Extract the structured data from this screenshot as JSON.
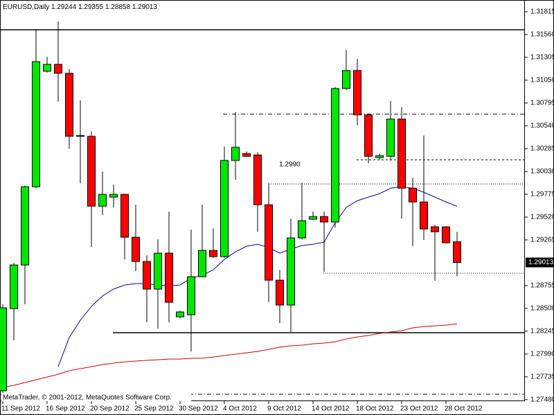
{
  "chart_data": {
    "type": "candlestick",
    "title": "EURUSD,Daily",
    "categories": [
      "11 Sep 2012",
      null,
      null,
      null,
      "16 Sep 2012",
      null,
      null,
      null,
      "20 Sep 2012",
      null,
      null,
      null,
      "25 Sep 2012",
      null,
      null,
      null,
      "30 Sep 2012",
      null,
      null,
      null,
      "4 Oct 2012",
      null,
      null,
      null,
      "9 Oct 2012",
      null,
      null,
      null,
      "14 Oct 2012",
      null,
      null,
      null,
      "18 Oct 2012",
      null,
      null,
      null,
      "23 Oct 2012",
      null,
      null,
      null,
      "28 Oct 2012",
      null
    ],
    "open": [
      1.27579,
      1.28498,
      1.28985,
      1.29859,
      1.3115,
      1.31227,
      1.31127,
      1.30431,
      1.30423,
      1.29642,
      1.29743,
      1.29774,
      1.29295,
      1.29024,
      1.28715,
      1.29117,
      1.28406,
      1.28429,
      1.28854,
      1.29148,
      1.29078,
      1.30153,
      1.3023,
      1.30214,
      1.29658,
      1.28815,
      1.28537,
      1.29287,
      1.29496,
      1.29526,
      1.29465,
      1.30957,
      1.31158,
      1.30663,
      1.30184,
      1.30199,
      1.30616,
      1.29843,
      1.29689,
      1.29411,
      1.29411,
      1.29244
    ],
    "high": [
      1.28545,
      1.29009,
      1.29874,
      1.31621,
      1.31312,
      1.31706,
      1.31173,
      1.30825,
      1.30477,
      1.30029,
      1.29882,
      1.29782,
      1.29658,
      1.29094,
      1.29271,
      1.29581,
      1.28475,
      1.2938,
      1.29658,
      1.29395,
      1.30307,
      1.30694,
      1.30253,
      1.30245,
      1.29898,
      1.28931,
      1.29503,
      1.29905,
      1.29581,
      1.29581,
      1.30972,
      1.31389,
      1.31289,
      1.30678,
      1.3023,
      1.30817,
      1.30748,
      1.29959,
      1.30431,
      1.29434,
      1.29419,
      1.29355
    ],
    "low": [
      1.2754,
      1.28143,
      1.28545,
      1.29843,
      1.31134,
      1.3081,
      1.30284,
      1.29898,
      1.29186,
      1.29542,
      1.29627,
      1.29047,
      1.28916,
      1.28344,
      1.28274,
      1.28344,
      1.2839,
      1.28019,
      1.28846,
      1.29063,
      1.29063,
      1.29936,
      1.30191,
      1.29356,
      1.28568,
      1.28336,
      1.28236,
      1.29271,
      1.29488,
      1.28908,
      1.29403,
      1.30941,
      1.30547,
      1.30122,
      1.30168,
      1.30153,
      1.29503,
      1.29194,
      1.29264,
      1.28808,
      1.29225,
      1.28858
    ],
    "close": [
      1.28506,
      1.28985,
      1.29859,
      1.31258,
      1.31227,
      1.31127,
      1.30423,
      1.30423,
      1.29642,
      1.29774,
      1.29774,
      1.29295,
      1.29024,
      1.28715,
      1.29117,
      1.28568,
      1.2846,
      1.28854,
      1.29148,
      1.29078,
      1.30153,
      1.303,
      1.30199,
      1.29658,
      1.28815,
      1.28537,
      1.29287,
      1.2948,
      1.29526,
      1.29465,
      1.30957,
      1.31158,
      1.30663,
      1.30199,
      1.30207,
      1.30616,
      1.29843,
      1.29689,
      1.29387,
      1.29356,
      1.29233,
      1.29013
    ],
    "up_color": "#00e600",
    "down_color": "#ff0000",
    "overlays": [
      {
        "color": "#000099",
        "values": [
          null,
          null,
          null,
          null,
          null,
          1.27849,
          1.28174,
          1.28367,
          1.28522,
          1.28638,
          1.28715,
          1.28761,
          1.28777,
          1.28777,
          1.28761,
          1.28754,
          1.28761,
          1.28839,
          1.28869,
          1.28931,
          1.29047,
          1.29132,
          1.29194,
          1.29217,
          1.29179,
          1.29117,
          1.29163,
          1.29202,
          1.29217,
          1.2924,
          1.29457,
          1.29627,
          1.29704,
          1.29743,
          1.29782,
          1.29843,
          1.29859,
          1.29843,
          1.29797,
          1.29743,
          1.29689,
          1.29642
        ]
      },
      {
        "color": "#cc0000",
        "values": [
          1.27617,
          1.2764,
          1.27671,
          1.27702,
          1.27733,
          1.27764,
          1.27803,
          1.27826,
          1.27849,
          1.27872,
          1.27888,
          1.27903,
          1.27911,
          1.27919,
          1.27926,
          1.27934,
          1.27934,
          1.27942,
          1.27942,
          1.27957,
          1.27973,
          1.27988,
          1.28004,
          1.28019,
          1.28042,
          1.28066,
          1.28081,
          1.28089,
          1.28104,
          1.28112,
          1.28127,
          1.28158,
          1.28181,
          1.28197,
          1.2822,
          1.28236,
          1.28251,
          1.28282,
          1.28297,
          1.28305,
          1.28313,
          1.28328
        ]
      }
    ],
    "levels": [
      {
        "value": 1.31614,
        "style": "solid"
      },
      {
        "value": 1.28228,
        "style": "solid"
      },
      {
        "value": 1.30671,
        "style": "dashdot"
      },
      {
        "value": 1.30161,
        "style": "dash"
      },
      {
        "value": 1.2989,
        "style": "dot"
      },
      {
        "value": 1.28893,
        "style": "dot"
      },
      {
        "value": 1.2754,
        "style": "dashdot"
      }
    ],
    "annotations": [
      {
        "text": "1.2990"
      }
    ],
    "watermark": "MetaTrader, © 2001-2012, MetaQuotes Software Corp.",
    "ylim": [
      1.27463,
      1.31946
    ],
    "yticks": [
      1.31815,
      {
        "value": 1.3156,
        "label": "1.31560"
      },
      1.31305,
      {
        "value": 1.3105,
        "label": "1.31050"
      },
      1.30795,
      {
        "value": 1.3054,
        "label": "1.30540"
      },
      1.30285,
      {
        "value": 1.3003,
        "label": "1.30030"
      },
      1.29775,
      {
        "value": 1.2952,
        "label": "1.29520"
      },
      1.29265,
      1.28755,
      {
        "value": 1.285,
        "label": "1.28500"
      },
      1.28245,
      {
        "value": 1.2799,
        "label": "1.27990"
      },
      1.27735,
      {
        "value": 1.2748,
        "label": "1.27480"
      }
    ]
  }
}
